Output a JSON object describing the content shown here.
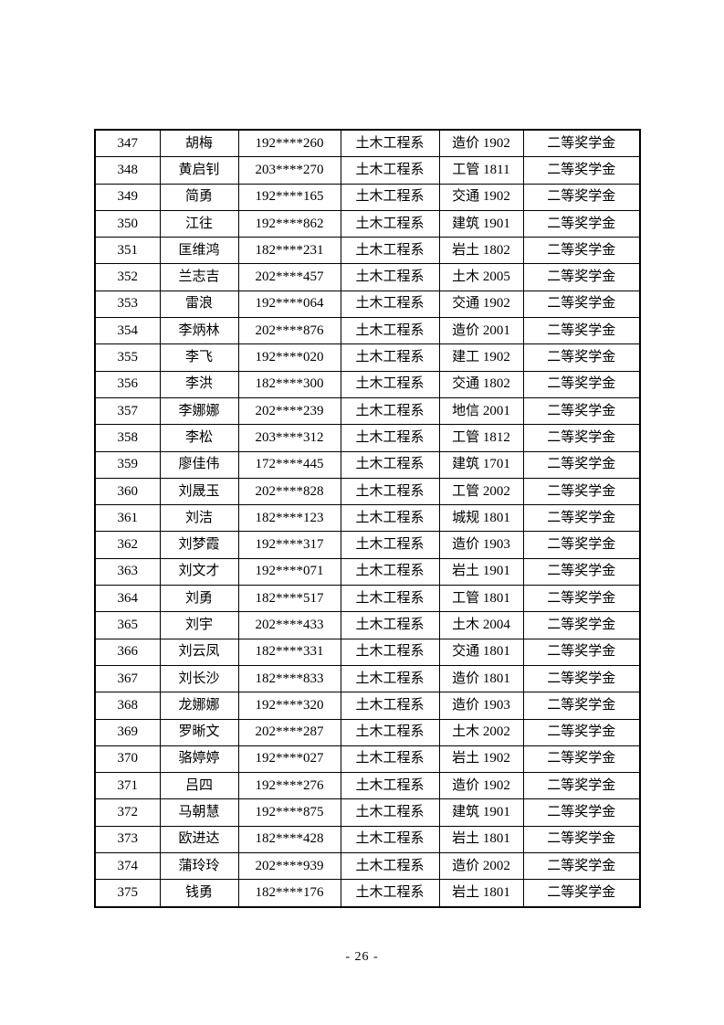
{
  "page": {
    "footer_page_number": "- 26 -"
  },
  "table": {
    "columns": [
      "serial_number",
      "name",
      "student_id",
      "department",
      "class",
      "award"
    ],
    "rows": [
      [
        "347",
        "胡梅",
        "192****260",
        "土木工程系",
        "造价 1902",
        "二等奖学金"
      ],
      [
        "348",
        "黄启钊",
        "203****270",
        "土木工程系",
        "工管 1811",
        "二等奖学金"
      ],
      [
        "349",
        "简勇",
        "192****165",
        "土木工程系",
        "交通 1902",
        "二等奖学金"
      ],
      [
        "350",
        "江往",
        "192****862",
        "土木工程系",
        "建筑 1901",
        "二等奖学金"
      ],
      [
        "351",
        "匡维鸿",
        "182****231",
        "土木工程系",
        "岩土 1802",
        "二等奖学金"
      ],
      [
        "352",
        "兰志吉",
        "202****457",
        "土木工程系",
        "土木 2005",
        "二等奖学金"
      ],
      [
        "353",
        "雷浪",
        "192****064",
        "土木工程系",
        "交通 1902",
        "二等奖学金"
      ],
      [
        "354",
        "李炳林",
        "202****876",
        "土木工程系",
        "造价 2001",
        "二等奖学金"
      ],
      [
        "355",
        "李飞",
        "192****020",
        "土木工程系",
        "建工 1902",
        "二等奖学金"
      ],
      [
        "356",
        "李洪",
        "182****300",
        "土木工程系",
        "交通 1802",
        "二等奖学金"
      ],
      [
        "357",
        "李娜娜",
        "202****239",
        "土木工程系",
        "地信 2001",
        "二等奖学金"
      ],
      [
        "358",
        "李松",
        "203****312",
        "土木工程系",
        "工管 1812",
        "二等奖学金"
      ],
      [
        "359",
        "廖佳伟",
        "172****445",
        "土木工程系",
        "建筑 1701",
        "二等奖学金"
      ],
      [
        "360",
        "刘晟玉",
        "202****828",
        "土木工程系",
        "工管 2002",
        "二等奖学金"
      ],
      [
        "361",
        "刘洁",
        "182****123",
        "土木工程系",
        "城规 1801",
        "二等奖学金"
      ],
      [
        "362",
        "刘梦霞",
        "192****317",
        "土木工程系",
        "造价 1903",
        "二等奖学金"
      ],
      [
        "363",
        "刘文才",
        "192****071",
        "土木工程系",
        "岩土 1901",
        "二等奖学金"
      ],
      [
        "364",
        "刘勇",
        "182****517",
        "土木工程系",
        "工管 1801",
        "二等奖学金"
      ],
      [
        "365",
        "刘宇",
        "202****433",
        "土木工程系",
        "土木 2004",
        "二等奖学金"
      ],
      [
        "366",
        "刘云凤",
        "182****331",
        "土木工程系",
        "交通 1801",
        "二等奖学金"
      ],
      [
        "367",
        "刘长沙",
        "182****833",
        "土木工程系",
        "造价 1801",
        "二等奖学金"
      ],
      [
        "368",
        "龙娜娜",
        "192****320",
        "土木工程系",
        "造价 1903",
        "二等奖学金"
      ],
      [
        "369",
        "罗晰文",
        "202****287",
        "土木工程系",
        "土木 2002",
        "二等奖学金"
      ],
      [
        "370",
        "骆婷婷",
        "192****027",
        "土木工程系",
        "岩土 1902",
        "二等奖学金"
      ],
      [
        "371",
        "吕四",
        "192****276",
        "土木工程系",
        "造价 1902",
        "二等奖学金"
      ],
      [
        "372",
        "马朝慧",
        "192****875",
        "土木工程系",
        "建筑 1901",
        "二等奖学金"
      ],
      [
        "373",
        "欧进达",
        "182****428",
        "土木工程系",
        "岩土 1801",
        "二等奖学金"
      ],
      [
        "374",
        "蒲玲玲",
        "202****939",
        "土木工程系",
        "造价 2002",
        "二等奖学金"
      ],
      [
        "375",
        "钱勇",
        "182****176",
        "土木工程系",
        "岩土 1801",
        "二等奖学金"
      ]
    ]
  }
}
